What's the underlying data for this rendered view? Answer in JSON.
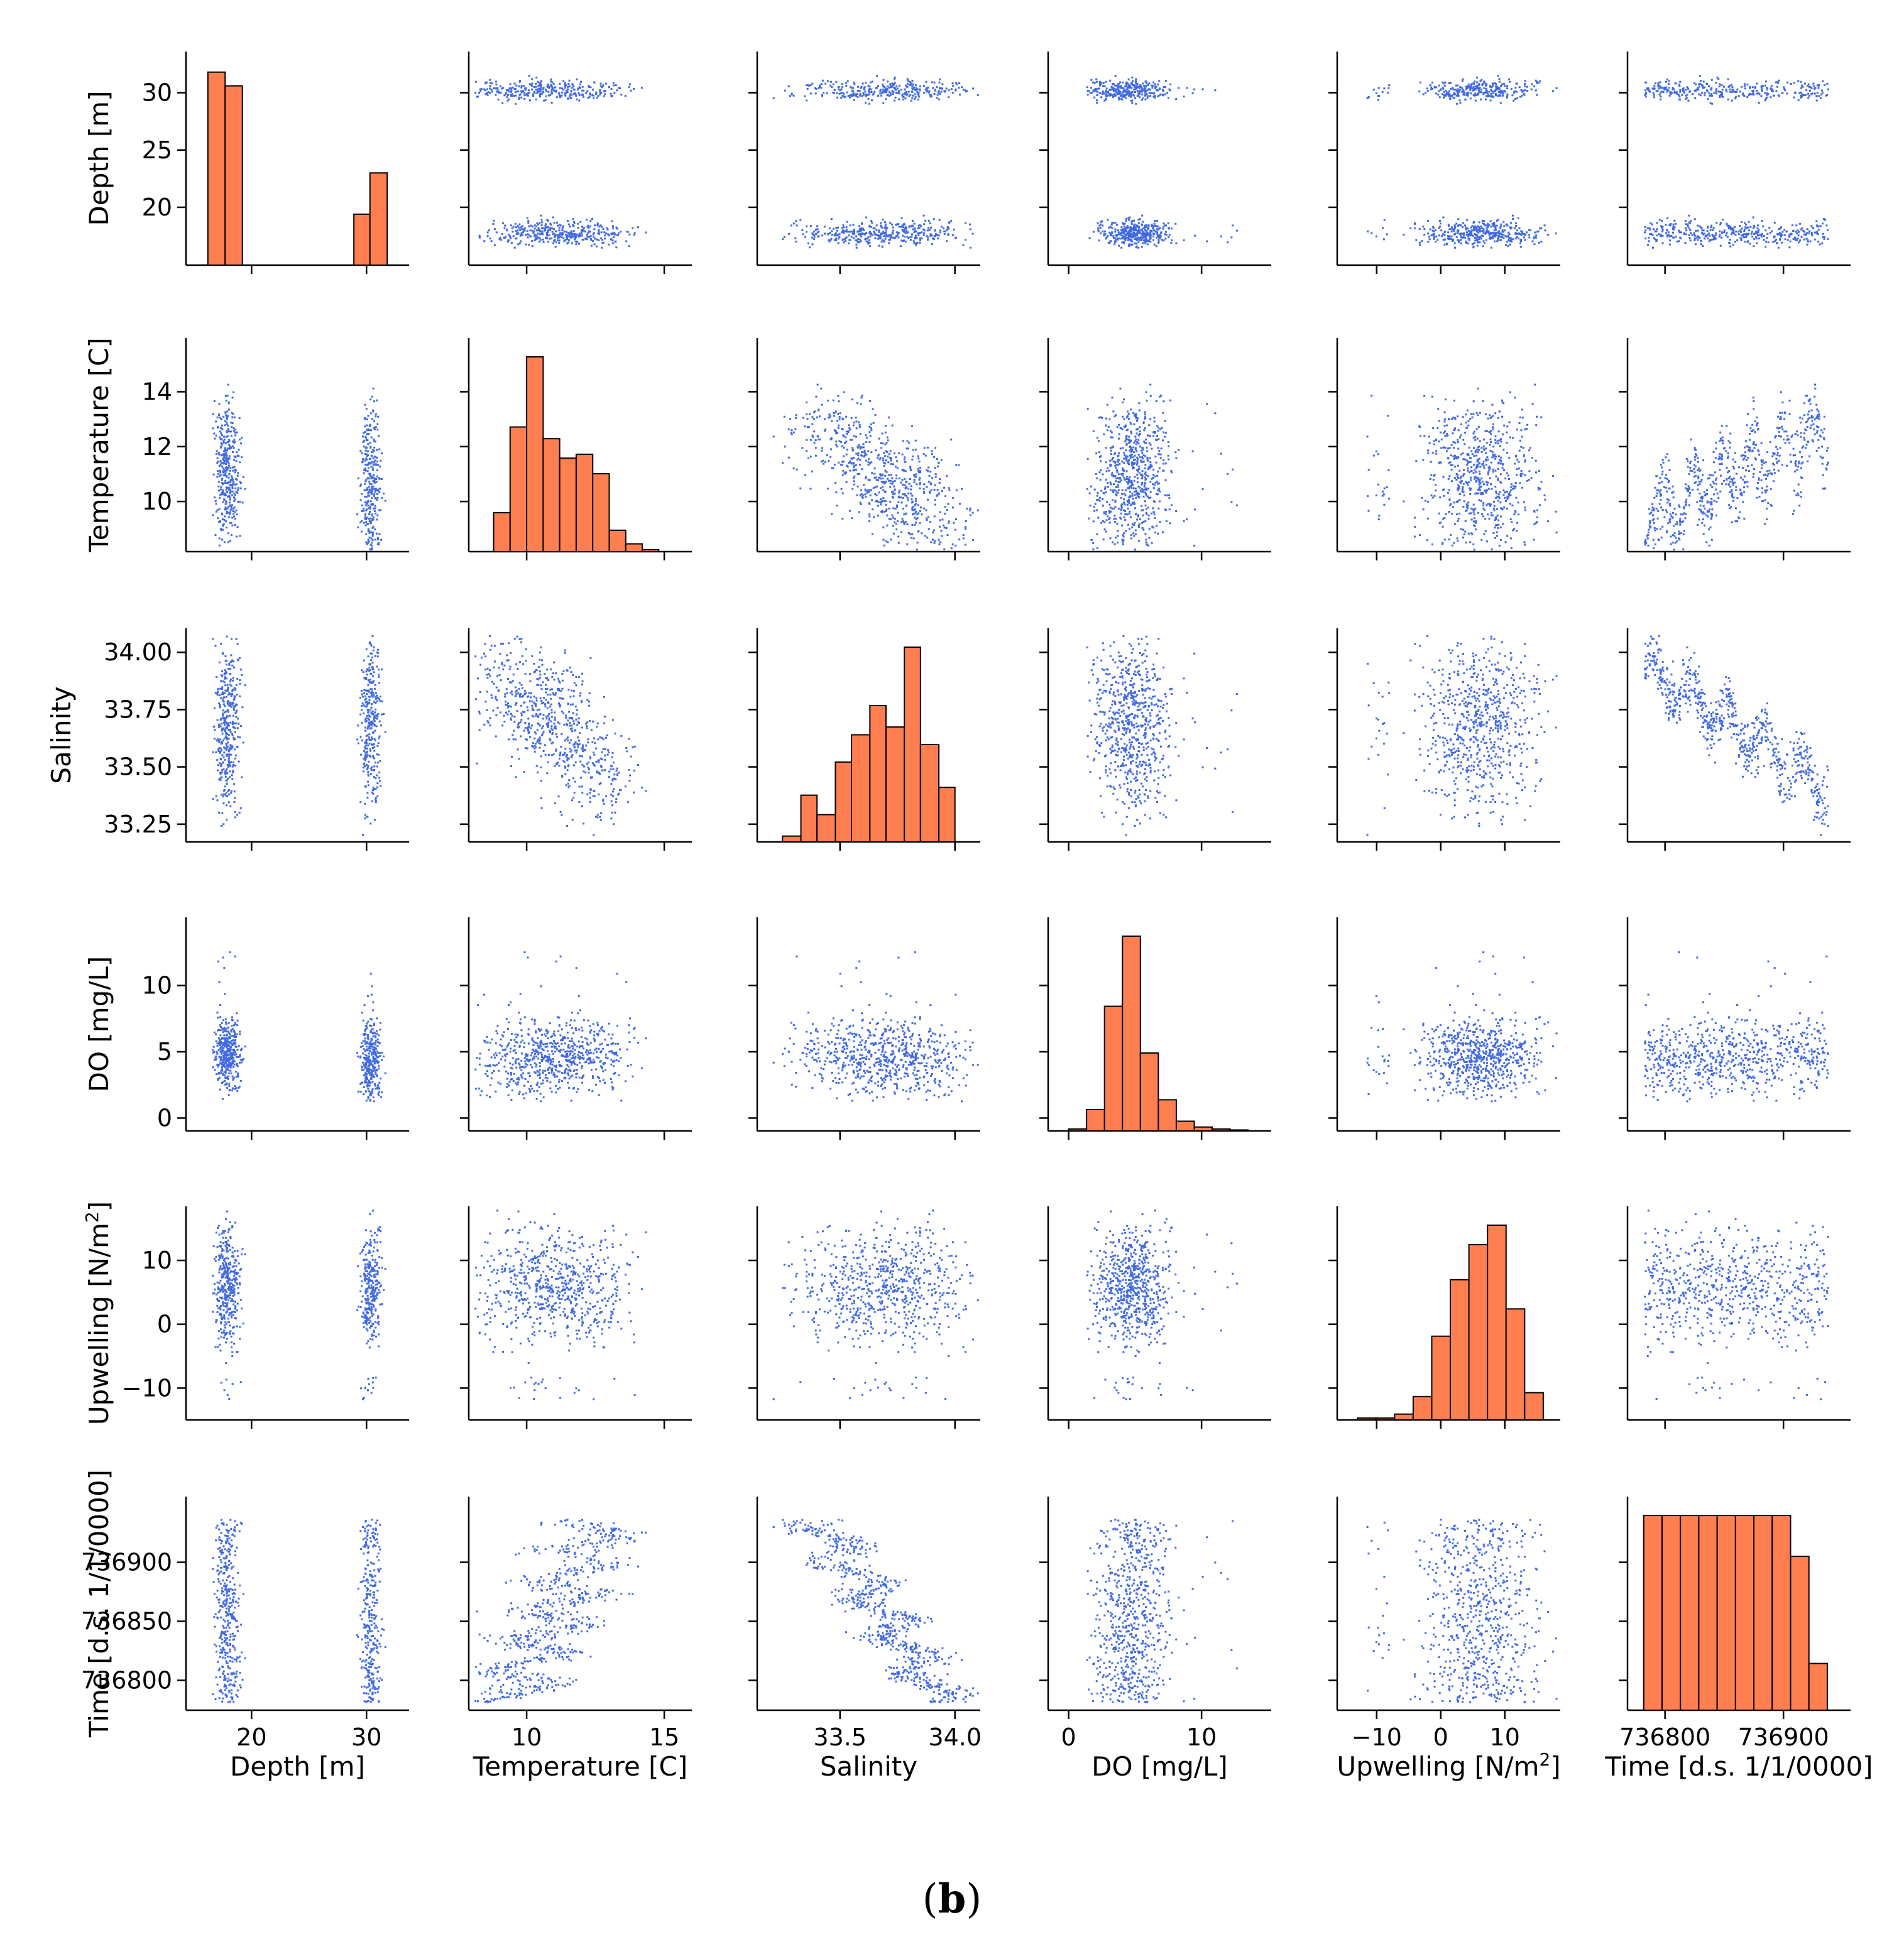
{
  "caption": {
    "open": "(",
    "label": "b",
    "close": ")"
  },
  "colors": {
    "scatter": "#4169e1",
    "histogram_fill": "#ff7f50",
    "histogram_edge": "#000000",
    "axis": "#000000"
  },
  "variables": [
    {
      "key": "depth",
      "label": "Depth [m]",
      "axis_label_parts": [
        "Depth [m]"
      ],
      "ylim": [
        15.5,
        32.5
      ],
      "xlim": [
        15.5,
        32.5
      ],
      "yticks": [
        20,
        25,
        30
      ],
      "xticks": [
        20,
        30
      ]
    },
    {
      "key": "temperature",
      "label": "Temperature [C]",
      "axis_label_parts": [
        "Temperature [C]"
      ],
      "ylim": [
        8.4,
        15.5
      ],
      "xlim": [
        8.4,
        15.5
      ],
      "yticks": [
        10,
        12,
        14
      ],
      "xticks": [
        10,
        15
      ]
    },
    {
      "key": "salinity",
      "label": "Salinity",
      "axis_label_parts": [
        "Salinity"
      ],
      "ylim": [
        33.2,
        34.05
      ],
      "xlim": [
        33.2,
        34.05
      ],
      "yticks": [
        "33.25",
        "33.50",
        "33.75",
        "34.00"
      ],
      "xticks": [
        "33.5",
        "34.0"
      ]
    },
    {
      "key": "do",
      "label": "DO [mg/L]",
      "axis_label_parts": [
        "DO [mg/L]"
      ],
      "ylim": [
        -0.5,
        14.2
      ],
      "xlim": [
        -0.5,
        14.2
      ],
      "yticks": [
        0,
        5,
        10
      ],
      "xticks": [
        0,
        10
      ]
    },
    {
      "key": "upwelling",
      "label": "Upwelling [N/m2]",
      "axis_label_parts": [
        "Upwelling [N/m",
        "2",
        "]"
      ],
      "ylim": [
        -14,
        16.5
      ],
      "xlim": [
        -14,
        16.5
      ],
      "yticks": [
        "−10",
        "0",
        "10"
      ],
      "xticks": [
        "−10",
        "0",
        "10"
      ]
    },
    {
      "key": "time",
      "label": "Time [d.s. 1/1/0000]",
      "axis_label_parts": [
        "Time [d.s. 1/1/0000]"
      ],
      "ylim": [
        736780,
        736945
      ],
      "xlim": [
        736780,
        736945
      ],
      "yticks": [
        736800,
        736850,
        736900
      ],
      "xticks": [
        736800,
        736900
      ]
    }
  ],
  "chart_data": {
    "type": "scatter",
    "layout": "pairplot 6x6 (histograms on diagonal, scatter off-diagonal)",
    "title": "",
    "variables": [
      "Depth [m]",
      "Temperature [C]",
      "Salinity",
      "DO [mg/L]",
      "Upwelling [N/m2]",
      "Time [d.s. 1/1/0000]"
    ],
    "histograms": {
      "depth": {
        "bins": [
          [
            16.2,
            17.7
          ],
          [
            17.7,
            19.2
          ],
          [
            28.9,
            30.3
          ],
          [
            30.3,
            31.8
          ]
        ],
        "heights": [
          31.8,
          30.6,
          19.4,
          23.0
        ],
        "shown_in_units_of_y_axis": "Depth [m]"
      },
      "temperature": {
        "bin_edges": [
          8.8,
          9.4,
          10.0,
          10.6,
          11.2,
          11.8,
          12.4,
          13.0,
          13.6,
          14.2,
          14.8
        ],
        "relative_heights": [
          0.2,
          0.64,
          1.0,
          0.58,
          0.48,
          0.5,
          0.4,
          0.11,
          0.04,
          0.01
        ]
      },
      "salinity": {
        "bin_edges": [
          33.25,
          33.33,
          33.4,
          33.48,
          33.55,
          33.63,
          33.7,
          33.78,
          33.85,
          33.93,
          34.0
        ],
        "relative_heights": [
          0.03,
          0.24,
          0.14,
          0.41,
          0.55,
          0.7,
          0.59,
          1.0,
          0.5,
          0.28
        ]
      },
      "do": {
        "bin_edges": [
          0.0,
          1.35,
          2.7,
          4.05,
          5.4,
          6.75,
          8.1,
          9.45,
          10.8,
          12.15,
          13.5
        ],
        "relative_heights": [
          0.01,
          0.11,
          0.64,
          1.0,
          0.4,
          0.16,
          0.05,
          0.02,
          0.01,
          0.005
        ]
      },
      "upwelling": {
        "bin_edges": [
          -13.0,
          -10.1,
          -7.2,
          -4.3,
          -1.4,
          1.5,
          4.4,
          7.3,
          10.2,
          13.1,
          16.0
        ],
        "relative_heights": [
          0.01,
          0.01,
          0.03,
          0.12,
          0.43,
          0.72,
          0.9,
          1.0,
          0.57,
          0.14
        ]
      },
      "time": {
        "bin_edges": [
          736782,
          736797.5,
          736813,
          736828.5,
          736844,
          736859.5,
          736875,
          736890.5,
          736906,
          736921.5,
          736937
        ],
        "relative_heights": [
          1.0,
          1.0,
          1.0,
          1.0,
          1.0,
          1.0,
          1.0,
          1.0,
          0.79,
          0.24
        ]
      }
    },
    "scatter_summary": {
      "depth_levels_m": [
        17.8,
        30.3
      ],
      "temperature_range": [
        8.8,
        15.0
      ],
      "salinity_range": [
        33.25,
        34.01
      ],
      "do_range": [
        0.0,
        13.8
      ],
      "upwelling_range": [
        -13.0,
        15.8
      ],
      "time_range": [
        736782,
        736937
      ]
    }
  }
}
